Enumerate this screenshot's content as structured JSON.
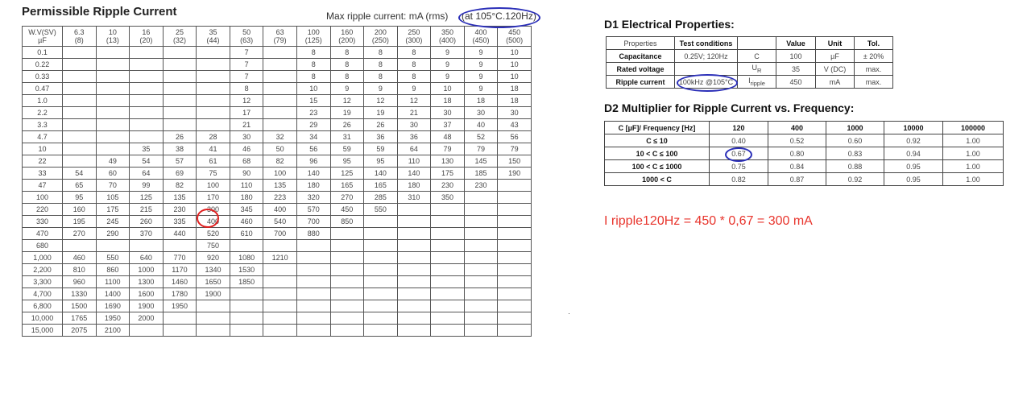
{
  "ripple": {
    "title": "Permissible Ripple Current",
    "subtitle": "Max ripple current: mA (rms)",
    "condition": "(at 105°C.120Hz)",
    "header": [
      [
        "W.V(SV)",
        "µF"
      ],
      [
        "6.3",
        "(8)"
      ],
      [
        "10",
        "(13)"
      ],
      [
        "16",
        "(20)"
      ],
      [
        "25",
        "(32)"
      ],
      [
        "35",
        "(44)"
      ],
      [
        "50",
        "(63)"
      ],
      [
        "63",
        "(79)"
      ],
      [
        "100",
        "(125)"
      ],
      [
        "160",
        "(200)"
      ],
      [
        "200",
        "(250)"
      ],
      [
        "250",
        "(300)"
      ],
      [
        "350",
        "(400)"
      ],
      [
        "400",
        "(450)"
      ],
      [
        "450",
        "(500)"
      ]
    ],
    "rows": [
      [
        "0.1",
        "",
        "",
        "",
        "",
        "",
        "7",
        "",
        "8",
        "8",
        "8",
        "8",
        "9",
        "9",
        "10"
      ],
      [
        "0.22",
        "",
        "",
        "",
        "",
        "",
        "7",
        "",
        "8",
        "8",
        "8",
        "8",
        "9",
        "9",
        "10"
      ],
      [
        "0.33",
        "",
        "",
        "",
        "",
        "",
        "7",
        "",
        "8",
        "8",
        "8",
        "8",
        "9",
        "9",
        "10"
      ],
      [
        "0.47",
        "",
        "",
        "",
        "",
        "",
        "8",
        "",
        "10",
        "9",
        "9",
        "9",
        "10",
        "9",
        "18"
      ],
      [
        "1.0",
        "",
        "",
        "",
        "",
        "",
        "12",
        "",
        "15",
        "12",
        "12",
        "12",
        "18",
        "18",
        "18"
      ],
      [
        "2.2",
        "",
        "",
        "",
        "",
        "",
        "17",
        "",
        "23",
        "19",
        "19",
        "21",
        "30",
        "30",
        "30"
      ],
      [
        "3.3",
        "",
        "",
        "",
        "",
        "",
        "21",
        "",
        "29",
        "26",
        "26",
        "30",
        "37",
        "40",
        "43"
      ],
      [
        "4.7",
        "",
        "",
        "",
        "26",
        "28",
        "30",
        "32",
        "34",
        "31",
        "36",
        "36",
        "48",
        "52",
        "56"
      ],
      [
        "10",
        "",
        "",
        "35",
        "38",
        "41",
        "46",
        "50",
        "56",
        "59",
        "59",
        "64",
        "79",
        "79",
        "79"
      ],
      [
        "22",
        "",
        "49",
        "54",
        "57",
        "61",
        "68",
        "82",
        "96",
        "95",
        "95",
        "110",
        "130",
        "145",
        "150"
      ],
      [
        "33",
        "54",
        "60",
        "64",
        "69",
        "75",
        "90",
        "100",
        "140",
        "125",
        "140",
        "140",
        "175",
        "185",
        "190"
      ],
      [
        "47",
        "65",
        "70",
        "99",
        "82",
        "100",
        "110",
        "135",
        "180",
        "165",
        "165",
        "180",
        "230",
        "230",
        ""
      ],
      [
        "100",
        "95",
        "105",
        "125",
        "135",
        "170",
        "180",
        "223",
        "320",
        "270",
        "285",
        "310",
        "350",
        "",
        ""
      ],
      [
        "220",
        "160",
        "175",
        "215",
        "230",
        "300",
        "345",
        "400",
        "570",
        "450",
        "550",
        "",
        "",
        "",
        ""
      ],
      [
        "330",
        "195",
        "245",
        "260",
        "335",
        "400",
        "460",
        "540",
        "700",
        "850",
        "",
        "",
        "",
        "",
        ""
      ],
      [
        "470",
        "270",
        "290",
        "370",
        "440",
        "520",
        "610",
        "700",
        "880",
        "",
        "",
        "",
        "",
        "",
        ""
      ],
      [
        "680",
        "",
        "",
        "",
        "",
        "750",
        "",
        "",
        "",
        "",
        "",
        "",
        "",
        "",
        ""
      ],
      [
        "1,000",
        "460",
        "550",
        "640",
        "770",
        "920",
        "1080",
        "1210",
        "",
        "",
        "",
        "",
        "",
        "",
        ""
      ],
      [
        "2,200",
        "810",
        "860",
        "1000",
        "1170",
        "1340",
        "1530",
        "",
        "",
        "",
        "",
        "",
        "",
        "",
        ""
      ],
      [
        "3,300",
        "960",
        "1100",
        "1300",
        "1460",
        "1650",
        "1850",
        "",
        "",
        "",
        "",
        "",
        "",
        "",
        ""
      ],
      [
        "4,700",
        "1330",
        "1400",
        "1600",
        "1780",
        "1900",
        "",
        "",
        "",
        "",
        "",
        "",
        "",
        "",
        ""
      ],
      [
        "6,800",
        "1500",
        "1690",
        "1900",
        "1950",
        "",
        "",
        "",
        "",
        "",
        "",
        "",
        "",
        "",
        ""
      ],
      [
        "10,000",
        "1765",
        "1950",
        "2000",
        "",
        "",
        "",
        "",
        "",
        "",
        "",
        "",
        "",
        "",
        ""
      ],
      [
        "15,000",
        "2075",
        "2100",
        "",
        "",
        "",
        "",
        "",
        "",
        "",
        "",
        "",
        "",
        "",
        ""
      ]
    ]
  },
  "d1": {
    "title": "D1 Electrical Properties:",
    "rows": [
      [
        "Properties",
        "Test conditions",
        "",
        "Value",
        "Unit",
        "Tol."
      ],
      [
        "Capacitance",
        "0.25V; 120Hz",
        "C",
        "100",
        "µF",
        "± 20%"
      ],
      [
        "Rated voltage",
        "",
        "UR",
        "35",
        "V (DC)",
        "max."
      ],
      [
        "Ripple current",
        "100kHz @105°C",
        "Iripple",
        "450",
        "mA",
        "max."
      ]
    ]
  },
  "d2": {
    "title": "D2 Multiplier for Ripple Current vs. Frequency:",
    "rows": [
      [
        "C [µF]/ Frequency [Hz]",
        "120",
        "400",
        "1000",
        "10000",
        "100000"
      ],
      [
        "C ≤ 10",
        "0.40",
        "0.52",
        "0.60",
        "0.92",
        "1.00"
      ],
      [
        "10 < C ≤ 100",
        "0.67",
        "0.80",
        "0.83",
        "0.94",
        "1.00"
      ],
      [
        "100 < C ≤ 1000",
        "0.75",
        "0.84",
        "0.88",
        "0.95",
        "1.00"
      ],
      [
        "1000 < C",
        "0.82",
        "0.87",
        "0.92",
        "0.95",
        "1.00"
      ]
    ]
  },
  "formula": "I ripple120Hz = 450 * 0,67 = 300 mA",
  "colors": {
    "annotation_blue": "#2b2fb8",
    "annotation_red": "#e02020",
    "formula_red": "#e8342c"
  }
}
